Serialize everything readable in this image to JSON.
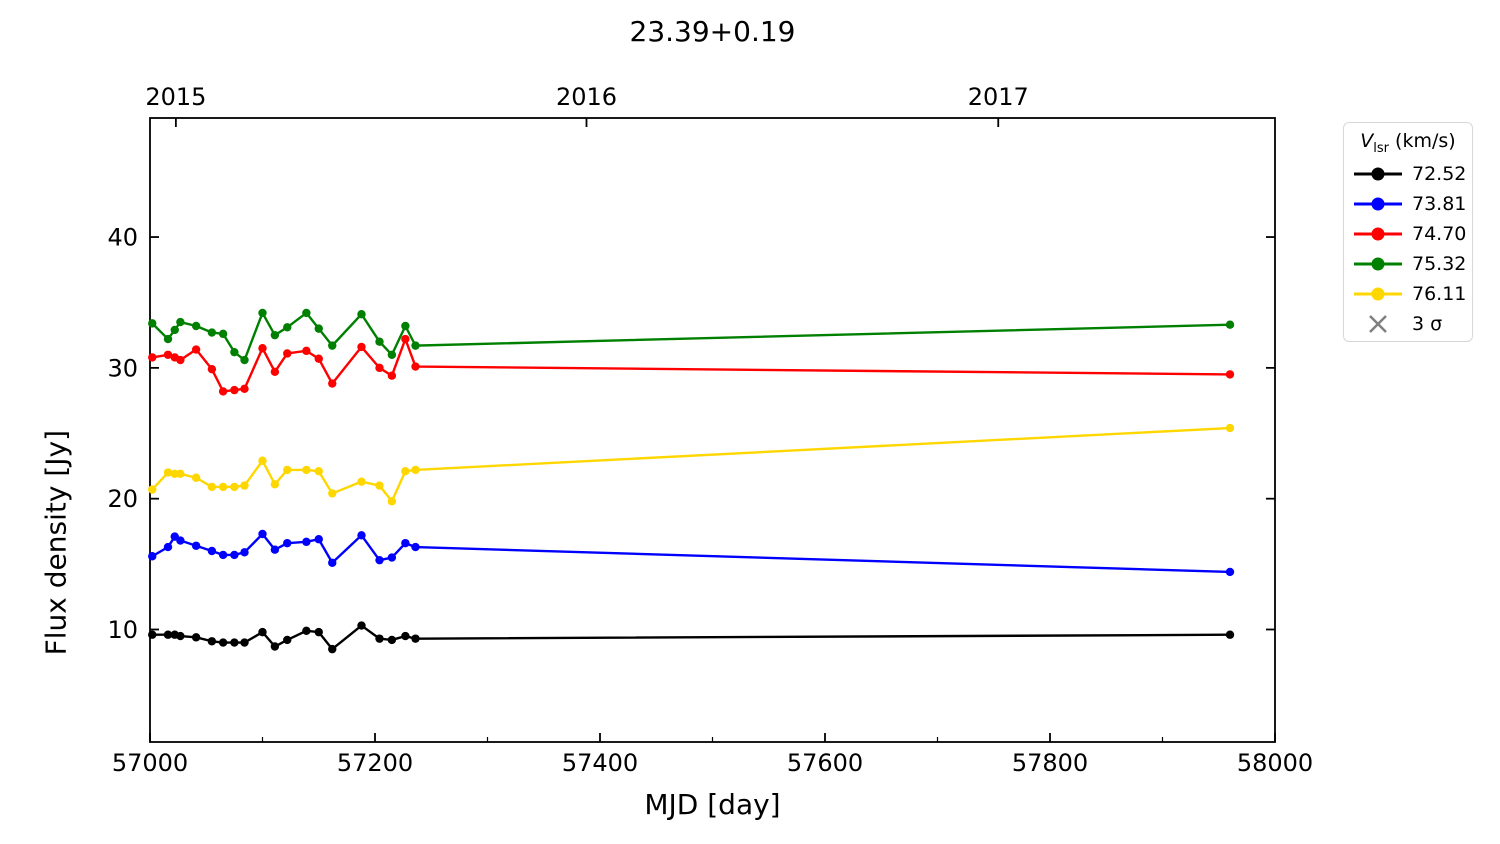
{
  "chart_data": {
    "type": "line",
    "title": "23.39+0.19",
    "xlabel": "MJD [day]",
    "ylabel": "Flux density [Jy]",
    "xlim": [
      57000,
      58000
    ],
    "ylim": [
      1.4,
      49.1
    ],
    "x_major_ticks": [
      57000,
      57200,
      57400,
      57600,
      57800,
      58000
    ],
    "x_minor_ticks": [
      57100,
      57300,
      57500,
      57700,
      57900
    ],
    "y_ticks": [
      10,
      20,
      30,
      40
    ],
    "top_axis": [
      {
        "label": "2015",
        "x": 57023
      },
      {
        "label": "2016",
        "x": 57388
      },
      {
        "label": "2017",
        "x": 57754
      }
    ],
    "legend": {
      "title_variable": "V",
      "title_subscript": "lsr",
      "title_units": " (km/s)",
      "sigma_label": "3 σ",
      "sigma_color": "#808080"
    },
    "x": [
      57002,
      57016,
      57022,
      57027,
      57041,
      57055,
      57065,
      57075,
      57084,
      57100,
      57111,
      57122,
      57139,
      57150,
      57162,
      57188,
      57204,
      57215,
      57227,
      57236,
      57960
    ],
    "series": [
      {
        "name": "72.52",
        "color": "#000000",
        "values": [
          9.6,
          9.6,
          9.6,
          9.5,
          9.4,
          9.1,
          9.0,
          9.0,
          9.0,
          9.8,
          8.7,
          9.2,
          9.9,
          9.8,
          8.5,
          10.3,
          9.3,
          9.2,
          9.5,
          9.3,
          9.6
        ]
      },
      {
        "name": "73.81",
        "color": "#0000ff",
        "values": [
          15.6,
          16.3,
          17.1,
          16.8,
          16.4,
          16.0,
          15.7,
          15.7,
          15.9,
          17.3,
          16.1,
          16.6,
          16.7,
          16.9,
          15.1,
          17.2,
          15.3,
          15.5,
          16.6,
          16.3,
          14.4
        ]
      },
      {
        "name": "74.70",
        "color": "#ff0000",
        "values": [
          30.8,
          31.0,
          30.8,
          30.6,
          31.4,
          29.9,
          28.2,
          28.3,
          28.4,
          31.5,
          29.7,
          31.1,
          31.3,
          30.7,
          28.8,
          31.6,
          30.0,
          29.4,
          32.2,
          30.1,
          29.5
        ]
      },
      {
        "name": "75.32",
        "color": "#008000",
        "values": [
          33.4,
          32.2,
          32.9,
          33.5,
          33.2,
          32.7,
          32.6,
          31.2,
          30.6,
          34.2,
          32.5,
          33.1,
          34.2,
          33.0,
          31.7,
          34.1,
          32.0,
          31.0,
          33.2,
          31.7,
          33.3
        ]
      },
      {
        "name": "76.11",
        "color": "#ffd700",
        "values": [
          20.7,
          22.0,
          21.9,
          21.9,
          21.6,
          20.9,
          20.9,
          20.9,
          21.0,
          22.9,
          21.1,
          22.2,
          22.2,
          22.1,
          20.4,
          21.3,
          21.0,
          19.8,
          22.1,
          22.2,
          25.4
        ]
      }
    ]
  }
}
